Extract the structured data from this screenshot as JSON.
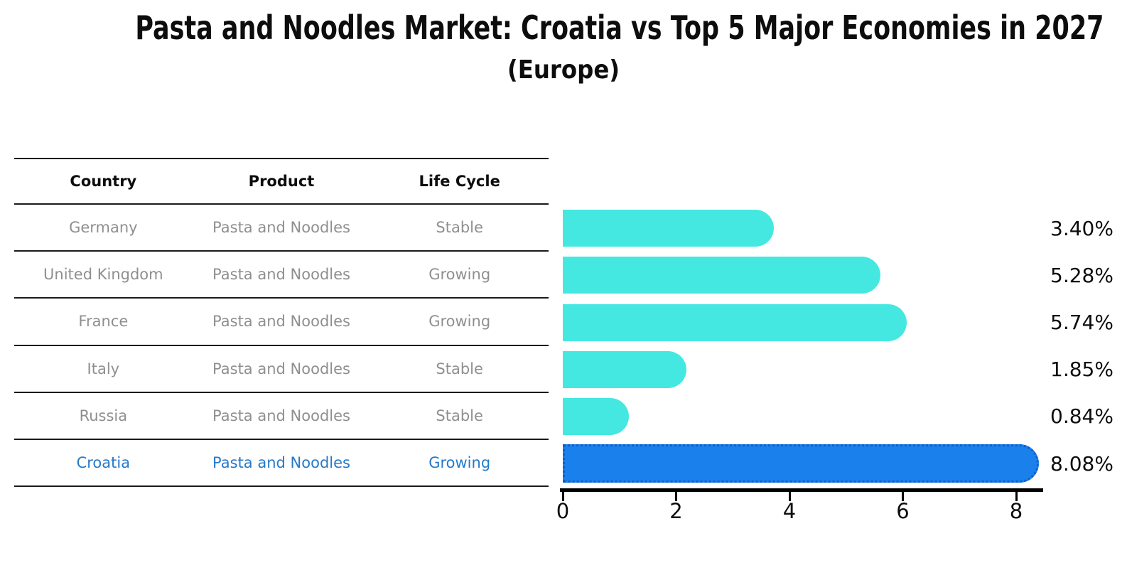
{
  "title": "Pasta and Noodles Market: Croatia vs Top 5 Major Economies in 2027",
  "subtitle": "(Europe)",
  "table": {
    "headers": [
      "Country",
      "Product",
      "Life Cycle"
    ],
    "rows": [
      {
        "country": "Germany",
        "product": "Pasta and Noodles",
        "life_cycle": "Stable",
        "highlight": false
      },
      {
        "country": "United Kingdom",
        "product": "Pasta and Noodles",
        "life_cycle": "Growing",
        "highlight": false
      },
      {
        "country": "France",
        "product": "Pasta and Noodles",
        "life_cycle": "Growing",
        "highlight": false
      },
      {
        "country": "Italy",
        "product": "Pasta and Noodles",
        "life_cycle": "Stable",
        "highlight": false
      },
      {
        "country": "Russia",
        "product": "Pasta and Noodles",
        "life_cycle": "Stable",
        "highlight": true
      }
    ],
    "highlight_row": {
      "country": "Croatia",
      "product": "Pasta and Noodles",
      "life_cycle": "Growing"
    }
  },
  "chart_data": {
    "type": "bar",
    "orientation": "horizontal",
    "title": "Pasta and Noodles Market: Croatia vs Top 5 Major Economies in 2027",
    "subtitle": "(Europe)",
    "categories": [
      "Germany",
      "United Kingdom",
      "France",
      "Italy",
      "Russia",
      "Croatia"
    ],
    "values": [
      3.4,
      5.28,
      5.74,
      1.85,
      0.84,
      8.08
    ],
    "value_labels": [
      "3.40%",
      "5.28%",
      "5.74%",
      "1.85%",
      "0.84%",
      "8.08%"
    ],
    "x_ticks": [
      0,
      2,
      4,
      6,
      8
    ],
    "xlim": [
      0,
      8.5
    ],
    "grid": false,
    "legend": false,
    "highlight_index": 5,
    "bar_color": "#45e8e1",
    "highlight_color": "#1a80eb",
    "highlight_border_color": "#0d5fd0",
    "axis_color": "#000000"
  }
}
